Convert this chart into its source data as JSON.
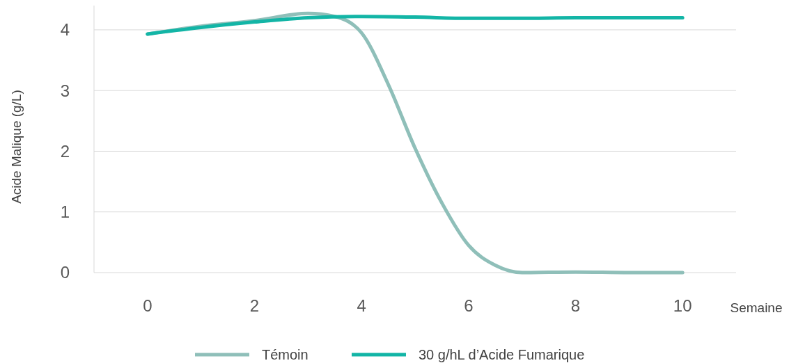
{
  "chart_data": {
    "type": "line",
    "xlabel": "Semaine",
    "ylabel": "Acide Malique (g/L)",
    "xlim": [
      -1,
      11
    ],
    "ylim": [
      0,
      4.4
    ],
    "xticks": [
      0,
      2,
      4,
      6,
      8,
      10
    ],
    "yticks": [
      0,
      1,
      2,
      3,
      4
    ],
    "grid": "y",
    "legend": "bottom",
    "marker": "none",
    "line_style": "solid",
    "series": [
      {
        "name": "Témoin",
        "color": "#8fbfb9",
        "x": [
          0,
          1,
          2,
          3,
          3.5,
          4,
          4.5,
          5,
          5.5,
          6,
          6.5,
          7,
          8,
          9,
          10
        ],
        "values": [
          3.93,
          4.06,
          4.15,
          4.27,
          4.22,
          3.95,
          3.1,
          2.05,
          1.15,
          0.45,
          0.12,
          0,
          0.01,
          0,
          0
        ]
      },
      {
        "name": "30 g/hL d’Acide Fumarique",
        "color": "#13b5a6",
        "x": [
          0,
          1,
          2,
          3,
          4,
          5,
          6,
          7,
          8,
          9,
          10
        ],
        "values": [
          3.93,
          4.04,
          4.13,
          4.2,
          4.22,
          4.21,
          4.19,
          4.19,
          4.2,
          4.2,
          4.2
        ]
      }
    ]
  }
}
